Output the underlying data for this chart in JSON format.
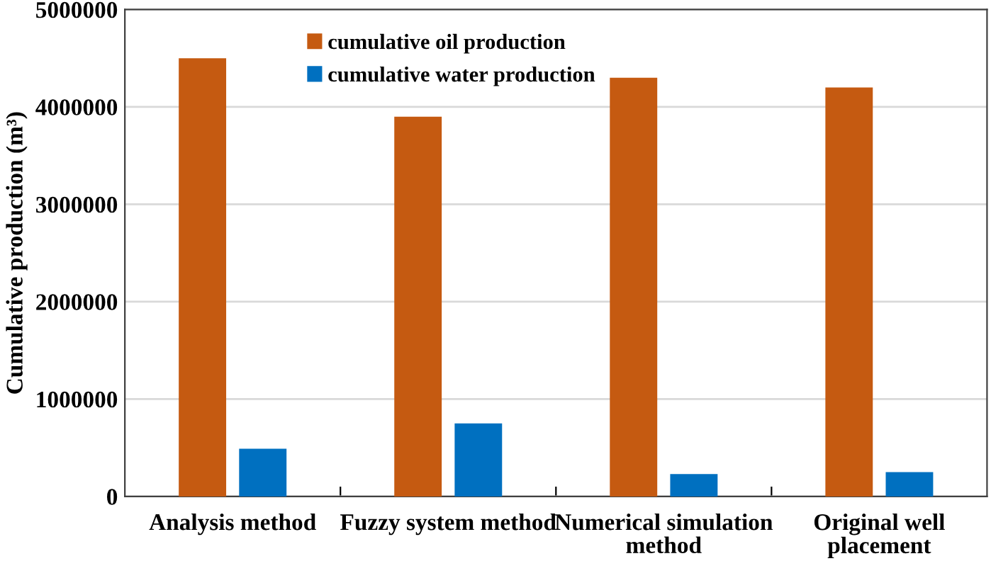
{
  "chart_data": {
    "type": "bar",
    "ylabel": "Cumulative production (m³)",
    "categories": [
      "Analysis method",
      "Fuzzy system method",
      "Numerical simulation\nmethod",
      "Original well\nplacement"
    ],
    "series": [
      {
        "name": "cumulative oil production",
        "color": "#c55a11",
        "values": [
          4500000,
          3900000,
          4300000,
          4200000
        ]
      },
      {
        "name": "cumulative water production",
        "color": "#0070c0",
        "values": [
          490000,
          750000,
          230000,
          250000
        ]
      }
    ],
    "ylim": [
      0,
      5000000
    ],
    "yticks": [
      0,
      1000000,
      2000000,
      3000000,
      4000000,
      5000000
    ],
    "grid": "y",
    "legend": "top"
  }
}
